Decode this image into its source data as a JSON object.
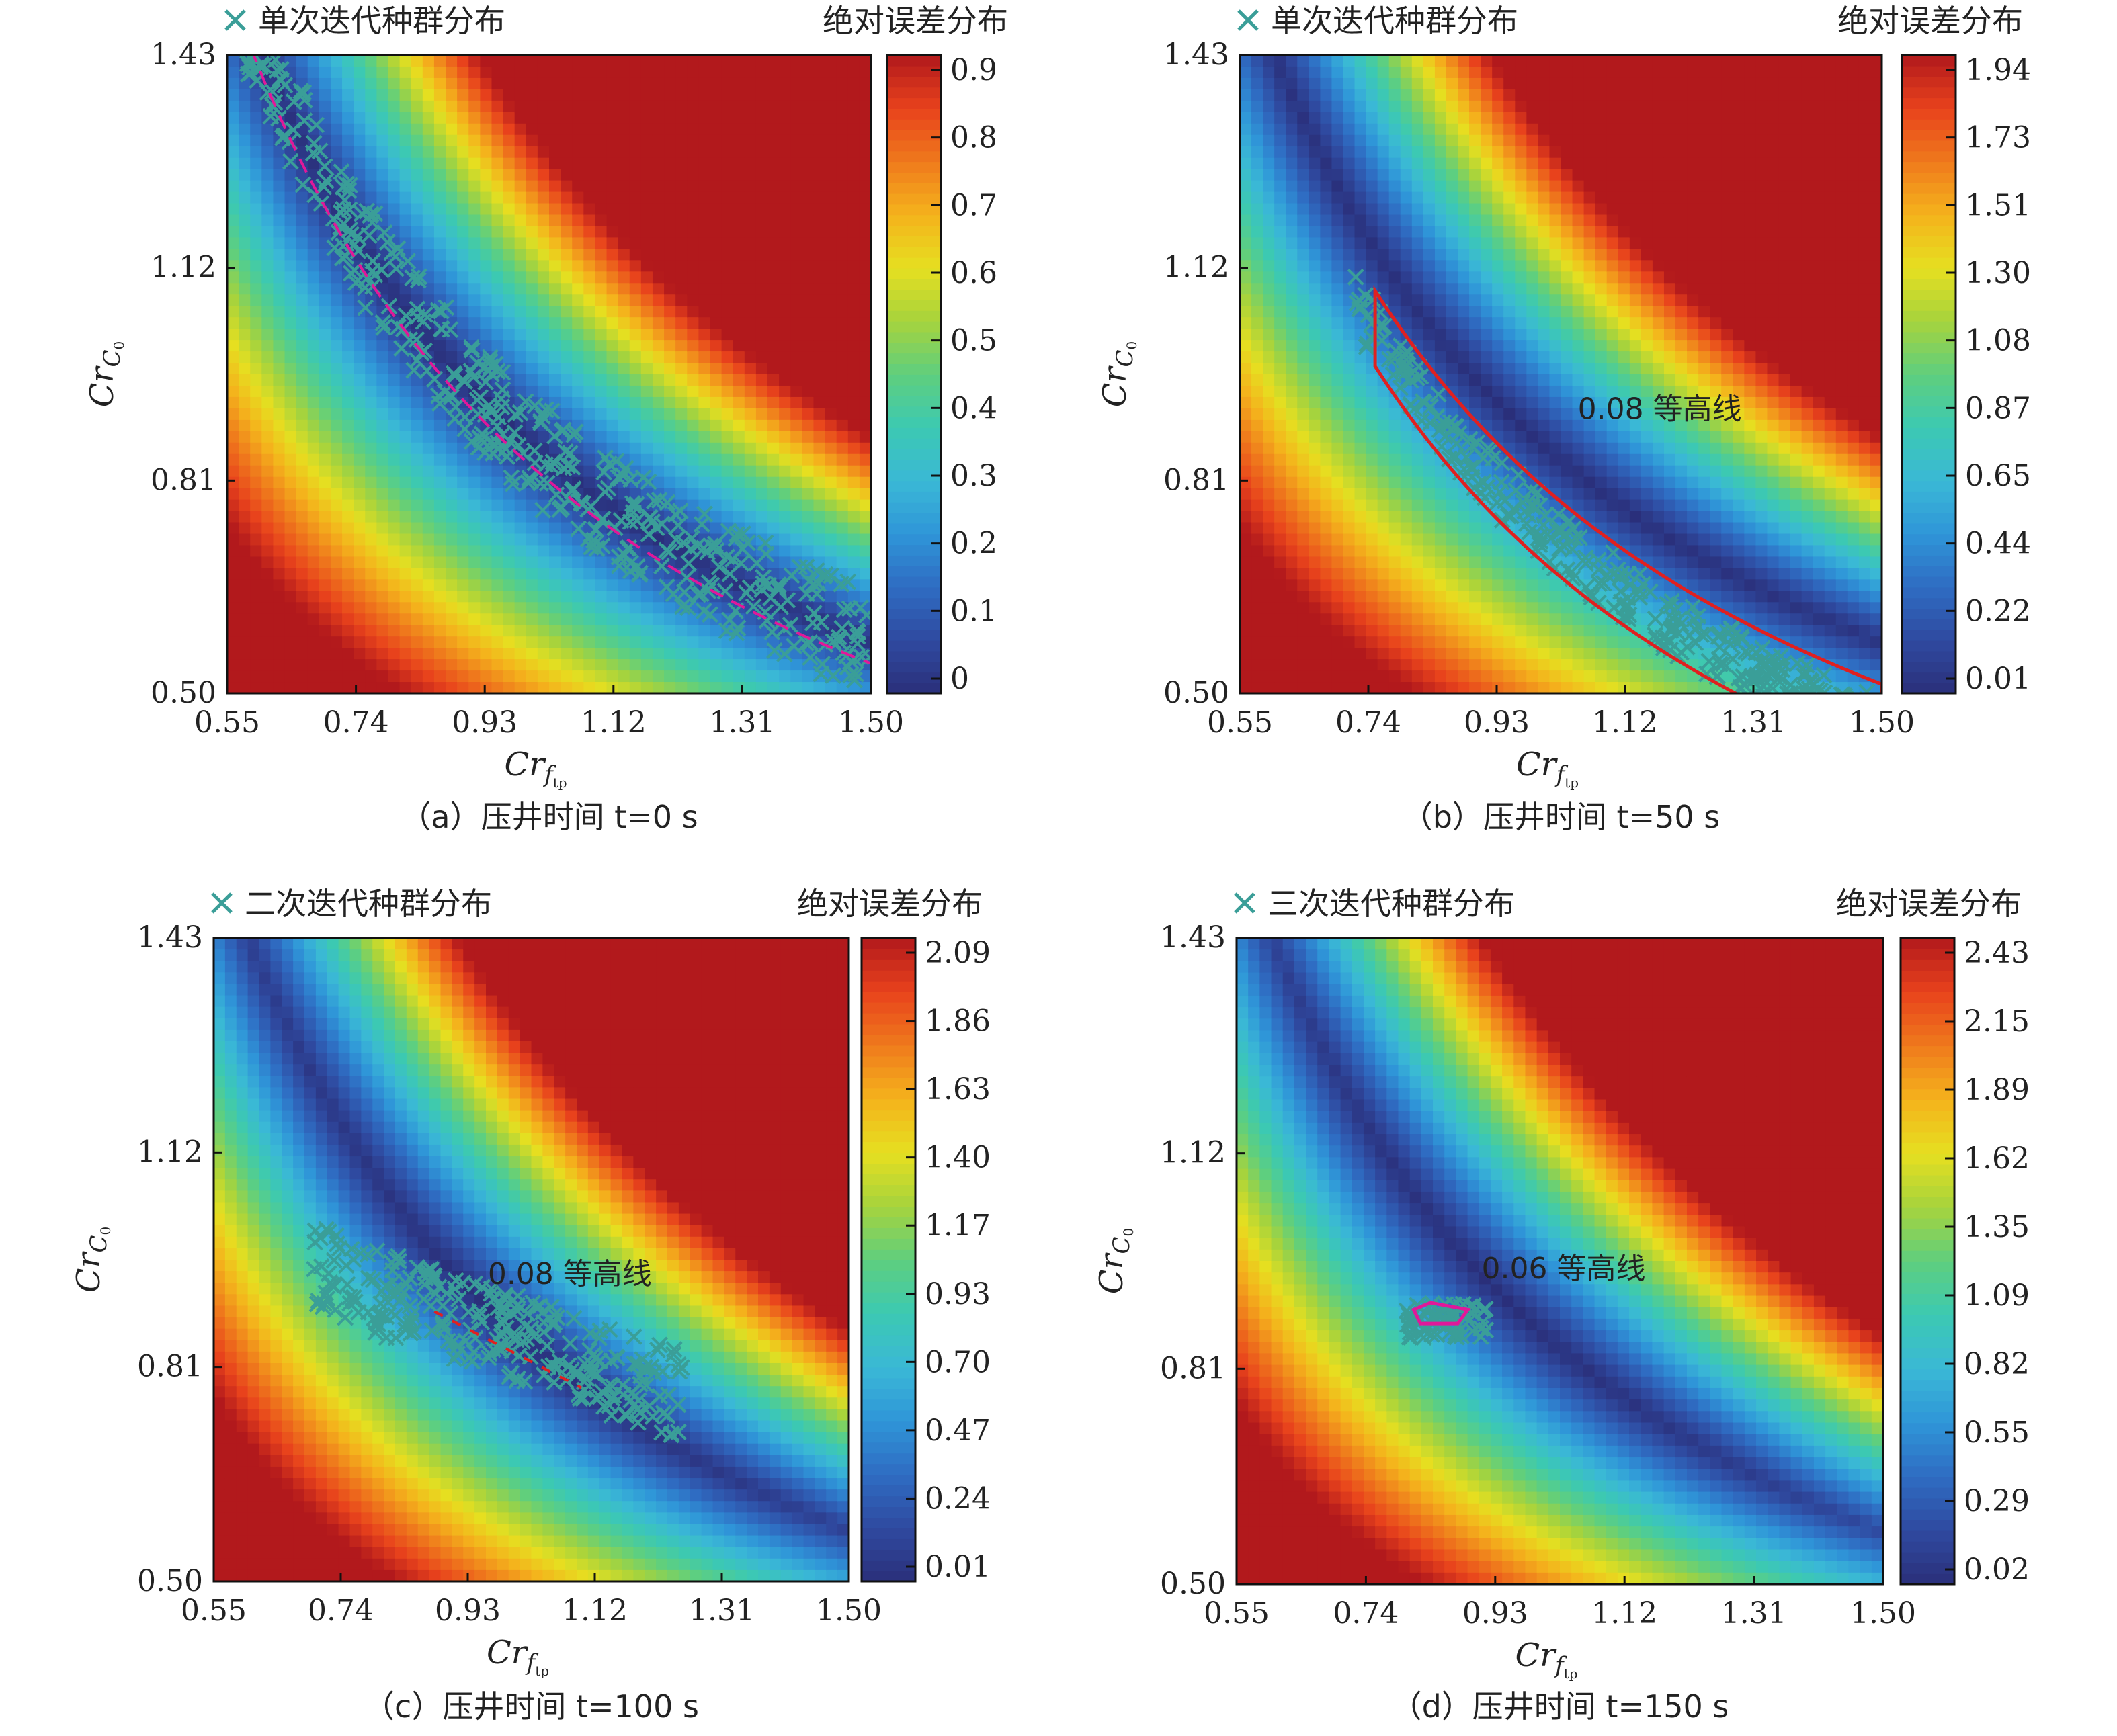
{
  "colormap": [
    "#2a2f7a",
    "#2f4aa0",
    "#2f6cc2",
    "#2f95d8",
    "#3ab8d6",
    "#3cc9b2",
    "#5fcf7e",
    "#a6d33d",
    "#e6df20",
    "#f4b31c",
    "#ef7a1c",
    "#e8421c",
    "#b2191c"
  ],
  "marker_color": "#3a9e98",
  "contour_color_red": "#e02020",
  "contour_color_magenta": "#e0189a",
  "chart_data": [
    {
      "type": "heatmap",
      "panel": "a",
      "caption": "（a）压井时间 t=0 s",
      "legend_label": "单次迭代种群分布",
      "colorbar_title": "绝对误差分布",
      "xlabel": "Cr",
      "xlabel_sub": "f",
      "xlabel_subsub": "tp",
      "ylabel": "Cr",
      "ylabel_sub": "C",
      "ylabel_subsub": "0",
      "xticks": [
        "0.55",
        "0.74",
        "0.93",
        "1.12",
        "1.31",
        "1.50"
      ],
      "yticks": [
        "0.50",
        "0.81",
        "1.12",
        "1.43"
      ],
      "colorbar_ticks": [
        "0",
        "0.1",
        "0.2",
        "0.3",
        "0.4",
        "0.5",
        "0.6",
        "0.7",
        "0.8",
        "0.9"
      ],
      "xlim": [
        0.55,
        1.5
      ],
      "ylim": [
        0.5,
        1.43
      ],
      "zmax": 0.9,
      "contour_label": "",
      "scatter_band": "wide"
    },
    {
      "type": "heatmap",
      "panel": "b",
      "caption": "（b）压井时间 t=50 s",
      "legend_label": "单次迭代种群分布",
      "colorbar_title": "绝对误差分布",
      "xlabel": "Cr",
      "xlabel_sub": "f",
      "xlabel_subsub": "tp",
      "ylabel": "Cr",
      "ylabel_sub": "C",
      "ylabel_subsub": "0",
      "xticks": [
        "0.55",
        "0.74",
        "0.93",
        "1.12",
        "1.31",
        "1.50"
      ],
      "yticks": [
        "0.50",
        "0.81",
        "1.12",
        "1.43"
      ],
      "colorbar_ticks": [
        "0.01",
        "0.22",
        "0.44",
        "0.65",
        "0.87",
        "1.08",
        "1.30",
        "1.51",
        "1.73",
        "1.94"
      ],
      "xlim": [
        0.55,
        1.5
      ],
      "ylim": [
        0.5,
        1.43
      ],
      "zmax": 1.94,
      "contour_label": "0.08 等高线",
      "scatter_band": "narrow"
    },
    {
      "type": "heatmap",
      "panel": "c",
      "caption": "（c）压井时间 t=100 s",
      "legend_label": "二次迭代种群分布",
      "colorbar_title": "绝对误差分布",
      "xlabel": "Cr",
      "xlabel_sub": "f",
      "xlabel_subsub": "tp",
      "ylabel": "Cr",
      "ylabel_sub": "C",
      "ylabel_subsub": "0",
      "xticks": [
        "0.55",
        "0.74",
        "0.93",
        "1.12",
        "1.31",
        "1.50"
      ],
      "yticks": [
        "0.50",
        "0.81",
        "1.12",
        "1.43"
      ],
      "colorbar_ticks": [
        "0.01",
        "0.24",
        "0.47",
        "0.70",
        "0.93",
        "1.17",
        "1.40",
        "1.63",
        "1.86",
        "2.09"
      ],
      "xlim": [
        0.55,
        1.5
      ],
      "ylim": [
        0.5,
        1.43
      ],
      "zmax": 2.09,
      "contour_label": "0.08 等高线",
      "scatter_band": "cluster"
    },
    {
      "type": "heatmap",
      "panel": "d",
      "caption": "（d）压井时间 t=150 s",
      "legend_label": "三次迭代种群分布",
      "colorbar_title": "绝对误差分布",
      "xlabel": "Cr",
      "xlabel_sub": "f",
      "xlabel_subsub": "tp",
      "ylabel": "Cr",
      "ylabel_sub": "C",
      "ylabel_subsub": "0",
      "xticks": [
        "0.55",
        "0.74",
        "0.93",
        "1.12",
        "1.31",
        "1.50"
      ],
      "yticks": [
        "0.50",
        "0.81",
        "1.12",
        "1.43"
      ],
      "colorbar_ticks": [
        "0.02",
        "0.29",
        "0.55",
        "0.82",
        "1.09",
        "1.35",
        "1.62",
        "1.89",
        "2.15",
        "2.43"
      ],
      "xlim": [
        0.55,
        1.5
      ],
      "ylim": [
        0.5,
        1.43
      ],
      "zmax": 2.43,
      "contour_label": "0.06 等高线",
      "scatter_band": "tight"
    }
  ]
}
